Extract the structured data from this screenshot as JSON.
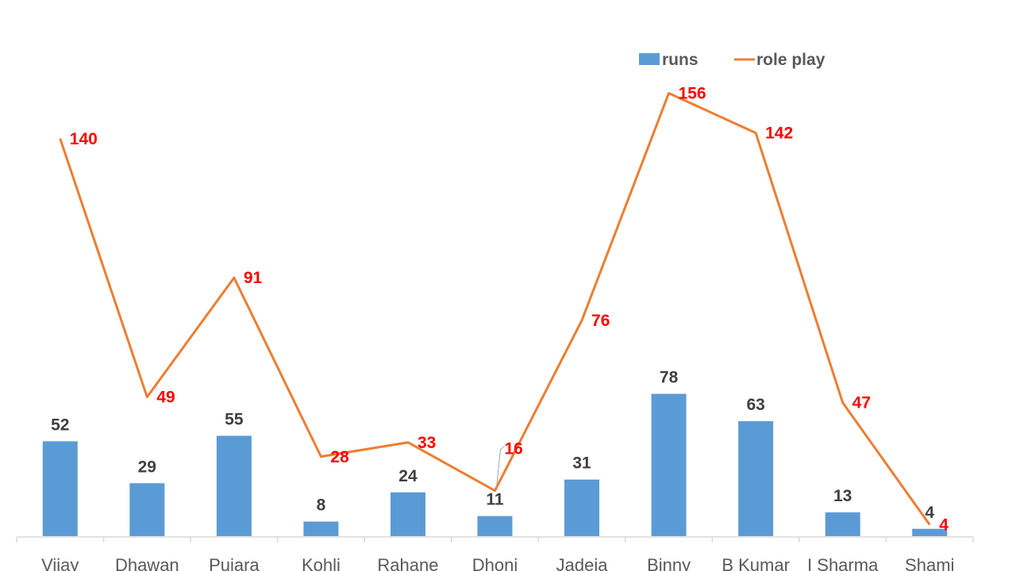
{
  "chart_data": {
    "type": "bar",
    "categories": [
      "Vijay",
      "Dhawan",
      "Pujara",
      "Kohli",
      "Rahane",
      "Dhoni",
      "Jadeja",
      "Binny",
      "B Kumar",
      "I Sharma",
      "Shami"
    ],
    "series": [
      {
        "name": "runs",
        "type": "bar",
        "values": [
          52,
          29,
          55,
          8,
          24,
          11,
          31,
          78,
          63,
          13,
          4
        ],
        "color": "#5b9bd5"
      },
      {
        "name": "role play",
        "type": "line",
        "values": [
          140,
          49,
          91,
          28,
          33,
          16,
          76,
          156,
          142,
          47,
          4
        ],
        "color": "#ed7d31"
      }
    ],
    "bar_label_color": "#404040",
    "line_label_color": "#ff0000",
    "legend_position": "top-right",
    "grid": false
  }
}
